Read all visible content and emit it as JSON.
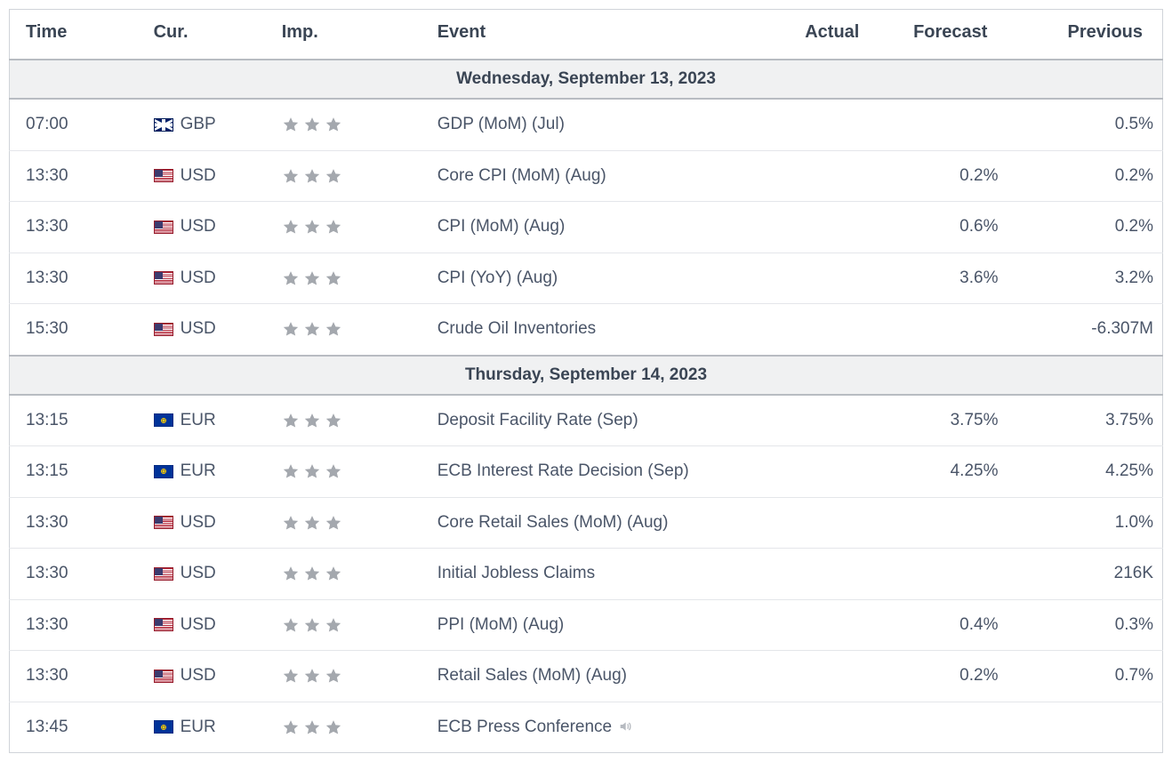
{
  "columns": {
    "time": "Time",
    "cur": "Cur.",
    "imp": "Imp.",
    "event": "Event",
    "actual": "Actual",
    "forecast": "Forecast",
    "previous": "Previous"
  },
  "colors": {
    "text": "#4a5568",
    "header_text": "#3a4554",
    "border": "#d0d4d9",
    "row_border": "#e4e6ea",
    "date_bg": "#f0f1f2",
    "date_border": "#b8bcc2",
    "star_fill": "#a4a8ae"
  },
  "groups": [
    {
      "date": "Wednesday, September 13, 2023",
      "rows": [
        {
          "time": "07:00",
          "flag": "gb",
          "cur": "GBP",
          "stars": 3,
          "event": "GDP (MoM) (Jul)",
          "actual": "",
          "forecast": "",
          "previous": "0.5%",
          "speech": false
        },
        {
          "time": "13:30",
          "flag": "us",
          "cur": "USD",
          "stars": 3,
          "event": "Core CPI (MoM) (Aug)",
          "actual": "",
          "forecast": "0.2%",
          "previous": "0.2%",
          "speech": false
        },
        {
          "time": "13:30",
          "flag": "us",
          "cur": "USD",
          "stars": 3,
          "event": "CPI (MoM) (Aug)",
          "actual": "",
          "forecast": "0.6%",
          "previous": "0.2%",
          "speech": false
        },
        {
          "time": "13:30",
          "flag": "us",
          "cur": "USD",
          "stars": 3,
          "event": "CPI (YoY) (Aug)",
          "actual": "",
          "forecast": "3.6%",
          "previous": "3.2%",
          "speech": false
        },
        {
          "time": "15:30",
          "flag": "us",
          "cur": "USD",
          "stars": 3,
          "event": "Crude Oil Inventories",
          "actual": "",
          "forecast": "",
          "previous": "-6.307M",
          "speech": false
        }
      ]
    },
    {
      "date": "Thursday, September 14, 2023",
      "rows": [
        {
          "time": "13:15",
          "flag": "eu",
          "cur": "EUR",
          "stars": 3,
          "event": "Deposit Facility Rate (Sep)",
          "actual": "",
          "forecast": "3.75%",
          "previous": "3.75%",
          "speech": false
        },
        {
          "time": "13:15",
          "flag": "eu",
          "cur": "EUR",
          "stars": 3,
          "event": "ECB Interest Rate Decision (Sep)",
          "actual": "",
          "forecast": "4.25%",
          "previous": "4.25%",
          "speech": false
        },
        {
          "time": "13:30",
          "flag": "us",
          "cur": "USD",
          "stars": 3,
          "event": "Core Retail Sales (MoM) (Aug)",
          "actual": "",
          "forecast": "",
          "previous": "1.0%",
          "speech": false
        },
        {
          "time": "13:30",
          "flag": "us",
          "cur": "USD",
          "stars": 3,
          "event": "Initial Jobless Claims",
          "actual": "",
          "forecast": "",
          "previous": "216K",
          "speech": false
        },
        {
          "time": "13:30",
          "flag": "us",
          "cur": "USD",
          "stars": 3,
          "event": "PPI (MoM) (Aug)",
          "actual": "",
          "forecast": "0.4%",
          "previous": "0.3%",
          "speech": false
        },
        {
          "time": "13:30",
          "flag": "us",
          "cur": "USD",
          "stars": 3,
          "event": "Retail Sales (MoM) (Aug)",
          "actual": "",
          "forecast": "0.2%",
          "previous": "0.7%",
          "speech": false
        },
        {
          "time": "13:45",
          "flag": "eu",
          "cur": "EUR",
          "stars": 3,
          "event": "ECB Press Conference",
          "actual": "",
          "forecast": "",
          "previous": "",
          "speech": true
        }
      ]
    }
  ]
}
